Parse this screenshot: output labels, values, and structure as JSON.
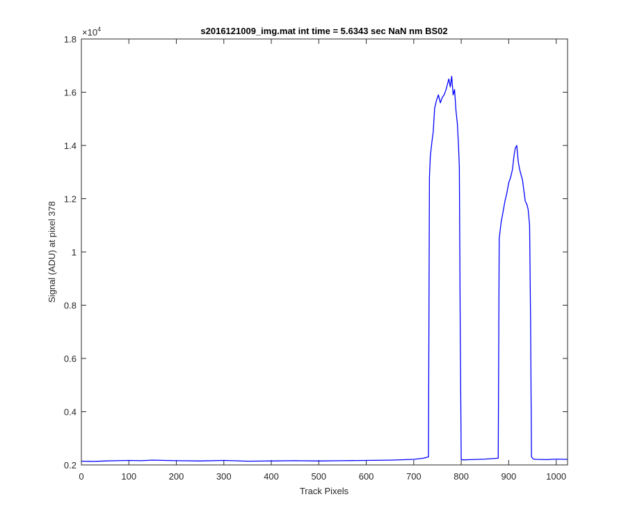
{
  "chart_data": {
    "type": "line",
    "title": "s2016121009_img.mat int time = 5.6343 sec  NaN nm BS02",
    "xlabel": "Track Pixels",
    "ylabel": "Signal (ADU) at pixel 378",
    "y_exponent_label": "×10",
    "y_exponent_power": "4",
    "xlim": [
      0,
      1024
    ],
    "ylim": [
      2000,
      18000
    ],
    "x_ticks": [
      0,
      100,
      200,
      300,
      400,
      500,
      600,
      700,
      800,
      900,
      1000
    ],
    "x_tick_labels": [
      "0",
      "100",
      "200",
      "300",
      "400",
      "500",
      "600",
      "700",
      "800",
      "900",
      "1000"
    ],
    "y_ticks": [
      2000,
      4000,
      6000,
      8000,
      10000,
      12000,
      14000,
      16000,
      18000
    ],
    "y_tick_labels": [
      "0.2",
      "0.4",
      "0.6",
      "0.8",
      "1",
      "1.2",
      "1.4",
      "1.6",
      "1.8"
    ],
    "grid": false,
    "series": [
      {
        "color": "#0000ff",
        "x": [
          0,
          25,
          50,
          75,
          100,
          125,
          150,
          175,
          200,
          250,
          300,
          350,
          400,
          450,
          500,
          550,
          600,
          650,
          700,
          720,
          731,
          733,
          735,
          738,
          741,
          744,
          748,
          752,
          756,
          760,
          764,
          768,
          771,
          774,
          777,
          780,
          783,
          786,
          789,
          792,
          794,
          796,
          798,
          800,
          805,
          820,
          850,
          878,
          880,
          884,
          888,
          892,
          896,
          900,
          904,
          908,
          911,
          914,
          917,
          920,
          923,
          926,
          929,
          932,
          935,
          938,
          941,
          944,
          946,
          948,
          952,
          960,
          980,
          1000,
          1024
        ],
        "y": [
          2140,
          2130,
          2150,
          2160,
          2170,
          2160,
          2180,
          2170,
          2160,
          2150,
          2170,
          2140,
          2150,
          2160,
          2150,
          2160,
          2170,
          2180,
          2210,
          2250,
          2300,
          12800,
          13600,
          14100,
          14500,
          15400,
          15700,
          15900,
          15600,
          15800,
          15900,
          16100,
          16300,
          16500,
          16200,
          16600,
          15900,
          16100,
          15300,
          14800,
          14100,
          13200,
          7000,
          2200,
          2190,
          2200,
          2220,
          2250,
          10500,
          11100,
          11500,
          11900,
          12200,
          12600,
          12800,
          13100,
          13600,
          13900,
          14000,
          13400,
          13100,
          12900,
          12700,
          12300,
          11900,
          11800,
          11600,
          11000,
          7500,
          2300,
          2220,
          2210,
          2200,
          2220,
          2210
        ]
      }
    ]
  }
}
